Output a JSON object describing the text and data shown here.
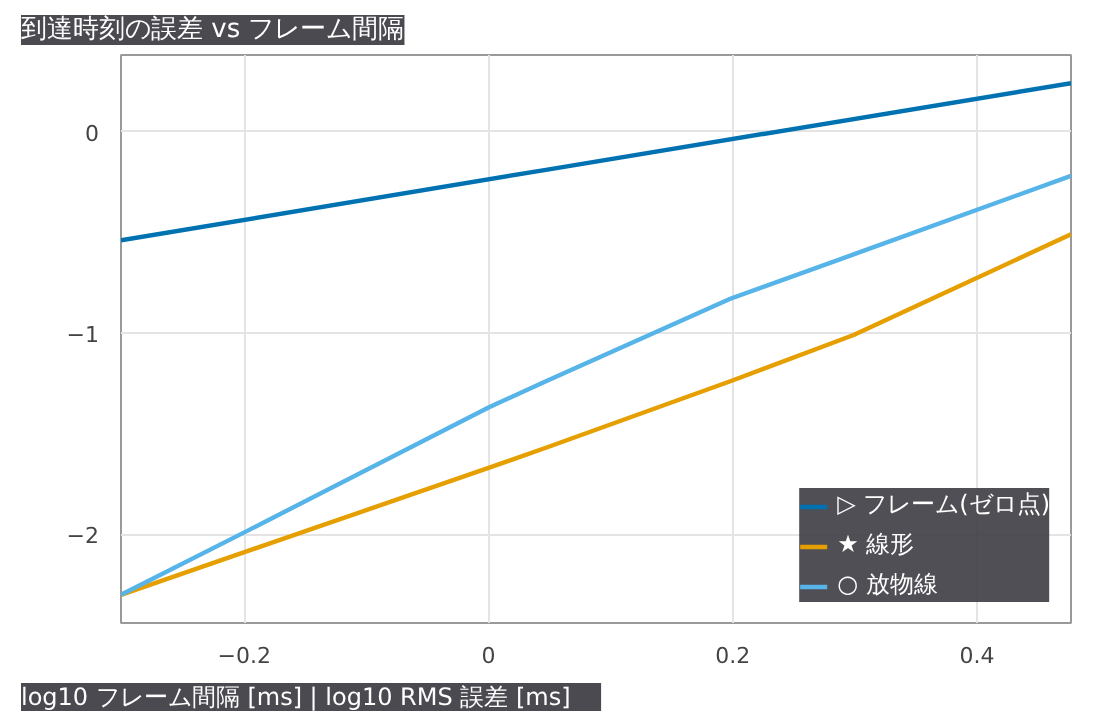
{
  "chart_data": {
    "type": "line",
    "title": "到達時刻の誤差 vs フレーム間隔",
    "annotations": [
      "log10 フレーム間隔 [ms]   |   log10 RMS 誤差 [ms]"
    ],
    "xlim": [
      -0.301,
      0.477
    ],
    "ylim": [
      -2.44,
      0.38
    ],
    "xticks": [
      -0.2,
      0,
      0.2,
      0.4
    ],
    "yticks": [
      -2,
      -1,
      0
    ],
    "grid": true,
    "legend": "bottom right",
    "line_style": "solid",
    "series": [
      {
        "name": "▷ フレーム(ゼロ点)",
        "color": "#0072b2",
        "x": [
          -0.301,
          0.047,
          0.477
        ],
        "values": [
          -0.54,
          -0.19,
          0.24
        ]
      },
      {
        "name": "★ 線形",
        "color": "#e69f00",
        "x": [
          -0.301,
          0.0,
          0.047,
          0.198,
          0.299,
          0.477
        ],
        "values": [
          -2.3,
          -1.67,
          -1.57,
          -1.24,
          -1.01,
          -0.51
        ]
      },
      {
        "name": "○ 放物線",
        "color": "#56b4e9",
        "x": [
          -0.301,
          -0.2,
          0.0,
          0.047,
          0.198,
          0.299,
          0.477
        ],
        "values": [
          -2.3,
          -1.99,
          -1.37,
          -1.24,
          -0.83,
          -0.61,
          -0.22
        ]
      }
    ]
  }
}
